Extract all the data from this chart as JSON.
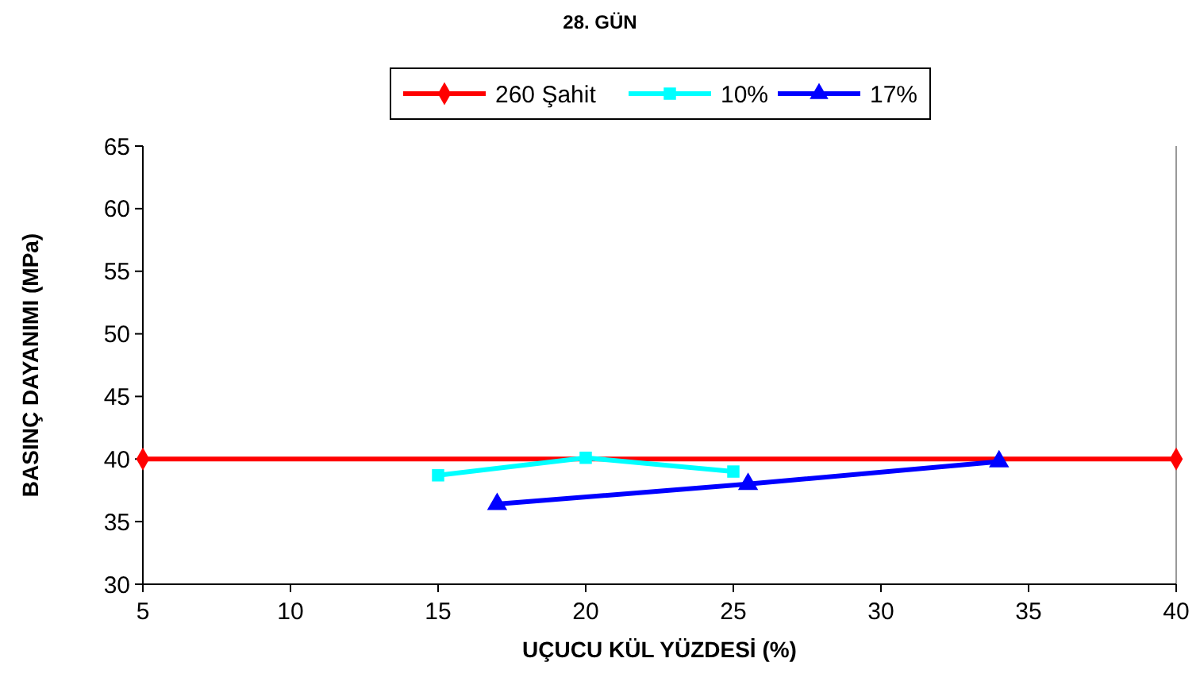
{
  "chart_data": {
    "type": "line",
    "title": "28. GÜN",
    "xlabel": "UÇUCU KÜL YÜZDESİ (%)",
    "ylabel": "BASINÇ DAYANIMI (MPa)",
    "xlim": [
      5,
      40
    ],
    "xticks": [
      5,
      10,
      15,
      20,
      25,
      30,
      35,
      40
    ],
    "ylim": [
      30,
      65
    ],
    "yticks": [
      30,
      35,
      40,
      45,
      50,
      55,
      60,
      65
    ],
    "grid": false,
    "legend": "top",
    "series": [
      {
        "name": "260 Şahit",
        "color": "#ff0000",
        "marker": "diamond",
        "x": [
          5,
          40
        ],
        "values": [
          40,
          40
        ]
      },
      {
        "name": "10%",
        "color": "#00ffff",
        "marker": "square",
        "x": [
          15,
          20,
          25
        ],
        "values": [
          38.7,
          40.1,
          39.0
        ]
      },
      {
        "name": "17%",
        "color": "#0000ff",
        "marker": "triangle",
        "x": [
          17,
          25.5,
          34
        ],
        "values": [
          36.4,
          38.0,
          39.8
        ]
      }
    ]
  }
}
